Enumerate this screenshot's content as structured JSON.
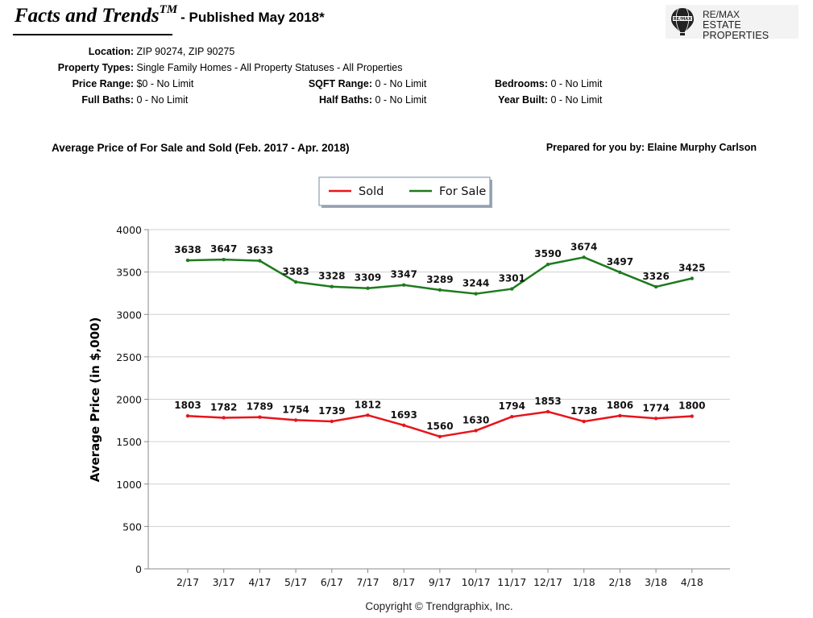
{
  "header": {
    "brand": "Facts and Trends",
    "brand_sup": "TM",
    "published": "- Published May 2018*"
  },
  "logo": {
    "line1": "RE/MAX",
    "line2": "ESTATE PROPERTIES",
    "balloon_text": "RE/MAX"
  },
  "criteria": {
    "location": {
      "label": "Location:",
      "value": "ZIP 90274, ZIP 90275"
    },
    "property_types": {
      "label": "Property Types:",
      "value": "Single Family Homes - All Property Statuses - All Properties"
    },
    "price_range": {
      "label": "Price Range:",
      "value": "$0 - No Limit"
    },
    "sqft_range": {
      "label": "SQFT Range:",
      "value": "0 - No Limit"
    },
    "bedrooms": {
      "label": "Bedrooms:",
      "value": "0 - No Limit"
    },
    "full_baths": {
      "label": "Full Baths:",
      "value": "0 - No Limit"
    },
    "half_baths": {
      "label": "Half Baths:",
      "value": "0 - No Limit"
    },
    "year_built": {
      "label": "Year Built:",
      "value": "0 - No Limit"
    }
  },
  "chart_title": "Average Price of For Sale and Sold (Feb. 2017 - Apr. 2018)",
  "prepared_by": "Prepared for you by: Elaine Murphy Carlson",
  "copyright": "Copyright © Trendgraphix, Inc.",
  "chart_data": {
    "type": "line",
    "ylabel": "Average Price (in $,000)",
    "xlabel": "",
    "ylim": [
      0,
      4000
    ],
    "yticks": [
      0,
      500,
      1000,
      1500,
      2000,
      2500,
      3000,
      3500,
      4000
    ],
    "grid": true,
    "legend_position": "top-center",
    "categories": [
      "2/17",
      "3/17",
      "4/17",
      "5/17",
      "6/17",
      "7/17",
      "8/17",
      "9/17",
      "10/17",
      "11/17",
      "12/17",
      "1/18",
      "2/18",
      "3/18",
      "4/18"
    ],
    "series": [
      {
        "name": "Sold",
        "color": "#e8141b",
        "values": [
          1803,
          1782,
          1789,
          1754,
          1739,
          1812,
          1693,
          1560,
          1630,
          1794,
          1853,
          1738,
          1806,
          1774,
          1800
        ]
      },
      {
        "name": "For Sale",
        "color": "#1e7a1e",
        "values": [
          3638,
          3647,
          3633,
          3383,
          3328,
          3309,
          3347,
          3289,
          3244,
          3301,
          3590,
          3674,
          3497,
          3326,
          3425
        ]
      }
    ]
  }
}
